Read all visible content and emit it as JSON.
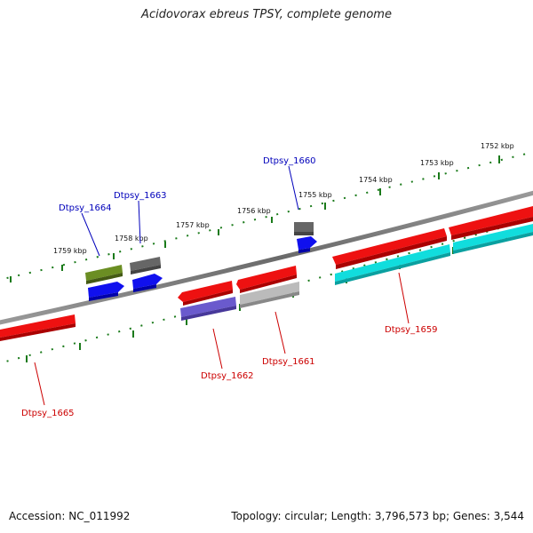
{
  "title": "Acidovorax ebreus TPSY, complete genome",
  "footer": {
    "accession": "Accession: NC_011992",
    "summary": "Topology: circular; Length: 3,796,573 bp; Genes: 3,544"
  },
  "colors": {
    "gene_red": "#ee1111",
    "gene_blue": "#1010ee",
    "gene_olive": "#6b8e23",
    "gene_dark_gray": "#666666",
    "gene_light_gray": "#bbbbbb",
    "gene_cyan": "#11dddd",
    "gene_purple": "#6a5acd",
    "backbone": "#777777",
    "tick": "#1a7a1a",
    "label_blue": "#0000bb",
    "label_red": "#cc0000"
  },
  "tick_labels": [
    {
      "id": "tick-1752",
      "text": "1752 kbp"
    },
    {
      "id": "tick-1753",
      "text": "1753 kbp"
    },
    {
      "id": "tick-1754",
      "text": "1754 kbp"
    },
    {
      "id": "tick-1755",
      "text": "1755 kbp"
    },
    {
      "id": "tick-1756",
      "text": "1756 kbp"
    },
    {
      "id": "tick-1757",
      "text": "1757 kbp"
    },
    {
      "id": "tick-1758",
      "text": "1758 kbp"
    },
    {
      "id": "tick-1759",
      "text": "1759 kbp"
    }
  ],
  "gene_labels": [
    {
      "id": "Dtpsy_1660",
      "text": "Dtpsy_1660",
      "color": "#0000bb"
    },
    {
      "id": "Dtpsy_1663",
      "text": "Dtpsy_1663",
      "color": "#0000bb"
    },
    {
      "id": "Dtpsy_1664",
      "text": "Dtpsy_1664",
      "color": "#0000bb"
    },
    {
      "id": "Dtpsy_1659",
      "text": "Dtpsy_1659",
      "color": "#cc0000"
    },
    {
      "id": "Dtpsy_1661",
      "text": "Dtpsy_1661",
      "color": "#cc0000"
    },
    {
      "id": "Dtpsy_1662",
      "text": "Dtpsy_1662",
      "color": "#cc0000"
    },
    {
      "id": "Dtpsy_1665",
      "text": "Dtpsy_1665",
      "color": "#cc0000"
    }
  ]
}
